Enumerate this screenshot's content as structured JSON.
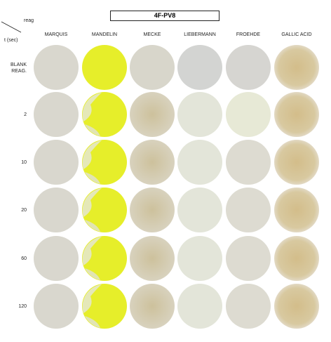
{
  "header": {
    "title": "4F-PV8",
    "corner_top": "reag",
    "corner_bottom": "t (sec)"
  },
  "columns": [
    "MARQUIS",
    "MANDELIN",
    "MECKE",
    "LIEBERMANN",
    "FROEHDE",
    "GALLIC ACID"
  ],
  "rows": [
    "BLANK REAG.",
    "2",
    "10",
    "20",
    "60",
    "120"
  ]
}
